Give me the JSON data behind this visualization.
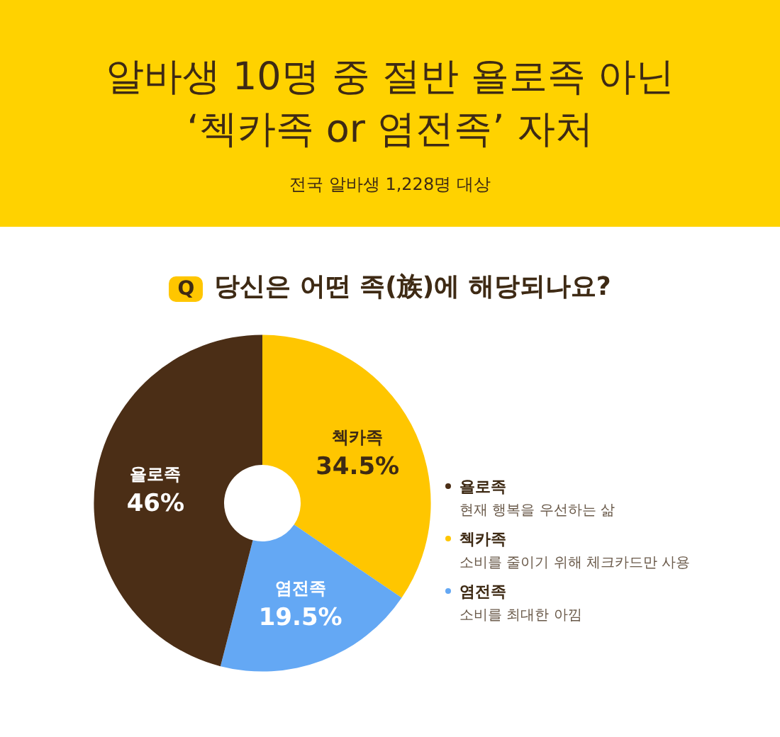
{
  "chart_data": {
    "type": "donut",
    "title": "알바생 10명 중 절반 욜로족 아닌\n‘첵카족 or 염전족’ 자처",
    "subtitle": "전국 알바생 1,228명 대상",
    "categories": [
      "첵카족",
      "염전족",
      "욜로족"
    ],
    "values": [
      34.5,
      19.5,
      46
    ],
    "colors": [
      "#ffc600",
      "#64a8f4",
      "#4b2e16"
    ],
    "value_labels": [
      "34.5%",
      "19.5%",
      "46%"
    ],
    "legend": "right",
    "annotations": [
      "Q",
      "당신은 어떤 족(族)에 해당되나요?",
      "소비를 줄이기 위해 체크카드만 사용",
      "소비를 최대한 아낌",
      "현재 행복을 우선하는 삶"
    ]
  }
}
